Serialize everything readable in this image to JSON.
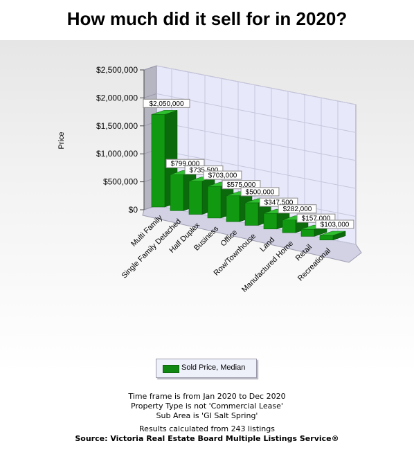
{
  "title": "How much did it sell for in 2020?",
  "chart_data": {
    "type": "bar",
    "title": "How much did it sell for in 2020?",
    "ylabel": "Price",
    "xlabel": "",
    "categories": [
      "Multi Family",
      "Single Family Detached",
      "Half Duplex",
      "Business",
      "Office",
      "Row/Townhouse",
      "Land",
      "Manufactured Home",
      "Retail",
      "Recreational"
    ],
    "series": [
      {
        "name": "Sold Price, Median",
        "values": [
          2050000,
          799000,
          735500,
          703000,
          575000,
          500000,
          347500,
          282000,
          157000,
          103000
        ],
        "labels": [
          "$2,050,000",
          "$799,000",
          "$735,500",
          "$703,000",
          "$575,000",
          "$500,000",
          "$347,500",
          "$282,000",
          "$157,000",
          "$103,000"
        ],
        "color": "#118811"
      }
    ],
    "ylim": [
      0,
      2500000
    ],
    "yticks": [
      0,
      500000,
      1000000,
      1500000,
      2000000,
      2500000
    ],
    "ytick_labels": [
      "$0",
      "$500,000",
      "$1,000,000",
      "$1,500,000",
      "$2,000,000",
      "$2,500,000"
    ],
    "grid": true,
    "legend": "bottom",
    "style": "3d"
  },
  "legend": {
    "label": "Sold Price, Median"
  },
  "footer": {
    "lines": [
      "Time frame is from Jan 2020 to Dec 2020",
      "Property Type is not 'Commercial Lease'",
      "Sub Area is 'GI Salt Spring'"
    ],
    "results": "Results calculated from 243 listings",
    "source": "Source: Victoria Real Estate Board Multiple Listings Service®"
  }
}
